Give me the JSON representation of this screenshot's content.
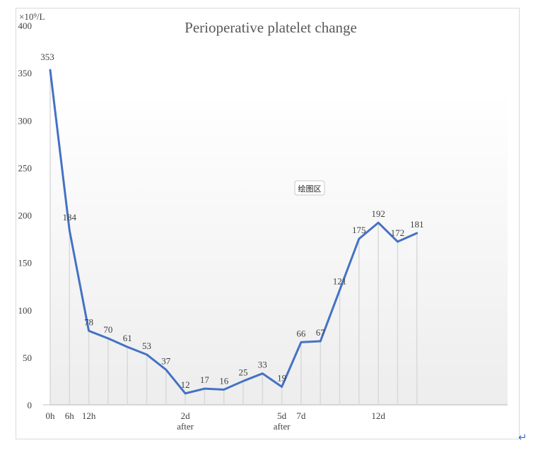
{
  "chart_data": {
    "type": "line",
    "title": "Perioperative platelet change",
    "y_unit_label": "×10⁹/L",
    "ylim": [
      0,
      400
    ],
    "y_ticks": [
      0,
      50,
      100,
      150,
      200,
      250,
      300,
      350,
      400
    ],
    "values": [
      353,
      184,
      78,
      70,
      61,
      53,
      37,
      12,
      17,
      16,
      25,
      33,
      19,
      66,
      67,
      121,
      175,
      192,
      172,
      181
    ],
    "x_tick_labels": [
      {
        "index": 0,
        "line1": "0h",
        "line2": ""
      },
      {
        "index": 1,
        "line1": "6h",
        "line2": ""
      },
      {
        "index": 2,
        "line1": "12h",
        "line2": ""
      },
      {
        "index": 7,
        "line1": "2d",
        "line2": "after"
      },
      {
        "index": 12,
        "line1": "5d",
        "line2": "after"
      },
      {
        "index": 13,
        "line1": "7d",
        "line2": ""
      },
      {
        "index": 17,
        "line1": "12d",
        "line2": ""
      }
    ],
    "line_color": "#4472c4",
    "drop_line_color": "#d9d9d9",
    "grid": false,
    "legend": "none"
  },
  "tooltip": {
    "label": "绘图区"
  },
  "return_mark": "↵"
}
